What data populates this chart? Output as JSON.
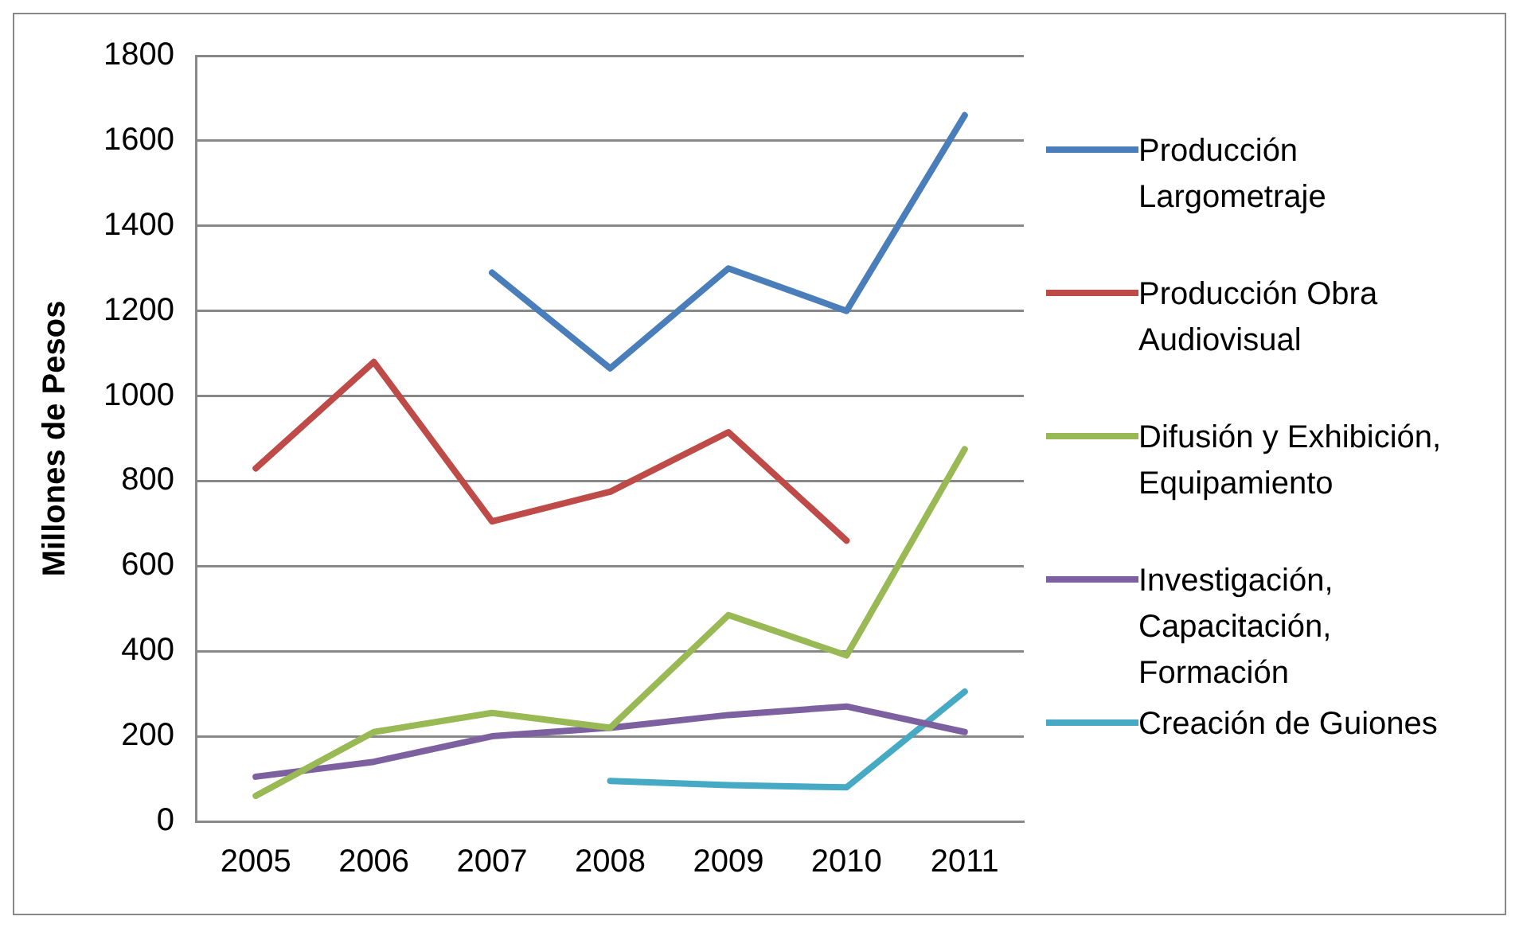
{
  "chart_data": {
    "type": "line",
    "ylabel": "Millones de Pesos",
    "categories": [
      "2005",
      "2006",
      "2007",
      "2008",
      "2009",
      "2010",
      "2011"
    ],
    "series": [
      {
        "name": "Producción Largometraje",
        "color": "#4a7ebb",
        "values": [
          null,
          null,
          1290,
          1065,
          1300,
          1200,
          1660
        ]
      },
      {
        "name": "Producción Obra Audiovisual",
        "color": "#be4b48",
        "values": [
          830,
          1080,
          705,
          775,
          915,
          660,
          null
        ]
      },
      {
        "name": "Difusión y Exhibición, Equipamiento",
        "color": "#98b954",
        "values": [
          60,
          210,
          255,
          220,
          485,
          390,
          875
        ]
      },
      {
        "name": "Investigación, Capacitación, Formación",
        "color": "#7d60a0",
        "values": [
          105,
          140,
          200,
          220,
          250,
          270,
          210
        ]
      },
      {
        "name": "Creación de Guiones",
        "color": "#46aac5",
        "values": [
          null,
          null,
          null,
          95,
          85,
          80,
          305
        ]
      }
    ],
    "ylim": [
      0,
      1800
    ],
    "yticks": [
      0,
      200,
      400,
      600,
      800,
      1000,
      1200,
      1400,
      1600,
      1800
    ],
    "grid": "y",
    "legend": "right",
    "marker": "none",
    "line_style": "solid"
  }
}
